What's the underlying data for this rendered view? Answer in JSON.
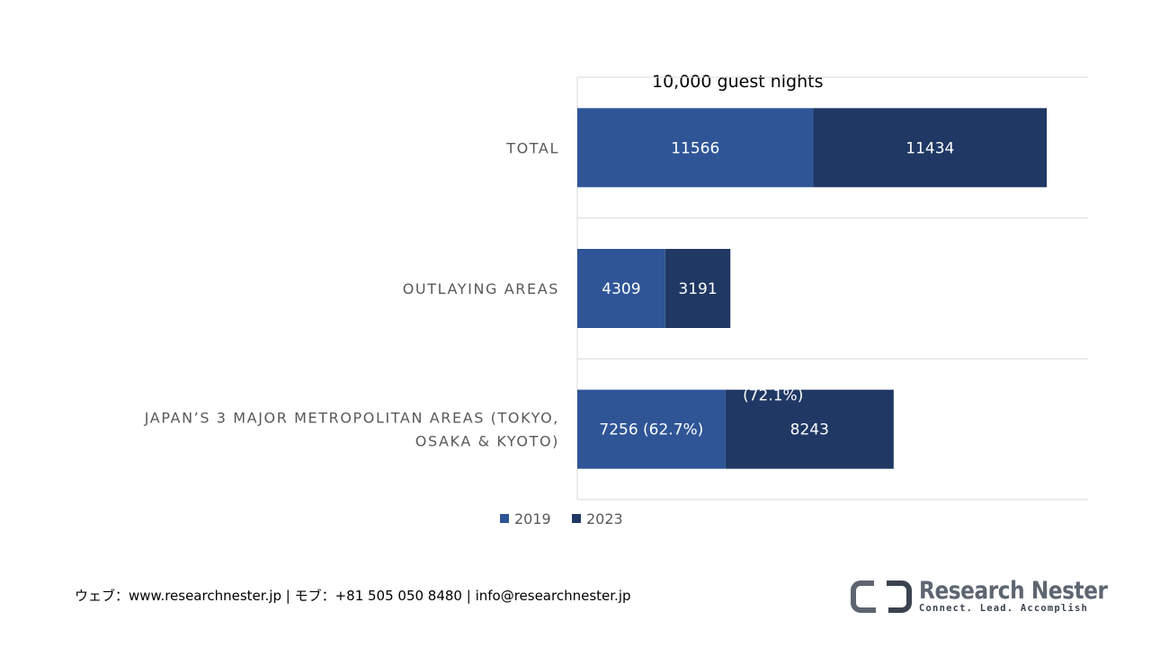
{
  "chart_data": {
    "type": "bar",
    "orientation": "horizontal",
    "stacked": true,
    "unit_title": "10,000 guest nights",
    "categories": [
      "TOTAL",
      "OUTLAYING AREAS",
      "JAPAN’S 3 MAJOR METROPOLITAN AREAS (TOKYO, OSAKA & KYOTO)"
    ],
    "category_lines": [
      [
        "TOTAL"
      ],
      [
        "OUTLAYING AREAS"
      ],
      [
        "JAPAN’S 3 MAJOR METROPOLITAN AREAS (TOKYO,",
        "OSAKA & KYOTO)"
      ]
    ],
    "series": [
      {
        "name": "2019",
        "color": "#2f5597",
        "values": [
          11566,
          4309,
          7256
        ],
        "labels": [
          "11566",
          "4309",
          "7256 (62.7%)"
        ]
      },
      {
        "name": "2023",
        "color": "#203864",
        "values": [
          11434,
          3191,
          8243
        ],
        "labels": [
          "11434",
          "3191",
          "8243"
        ]
      }
    ],
    "annotations": [
      "(72.1%)"
    ],
    "legend_position": "bottom",
    "gridlines": true
  },
  "footer": {
    "contact": "ウェブ：www.researchnester.jp | モブ：+81 505 050 8480 | info@researchnester.jp"
  },
  "logo": {
    "name": "Research Nester",
    "tagline": "Connect. Lead. Accomplish"
  }
}
